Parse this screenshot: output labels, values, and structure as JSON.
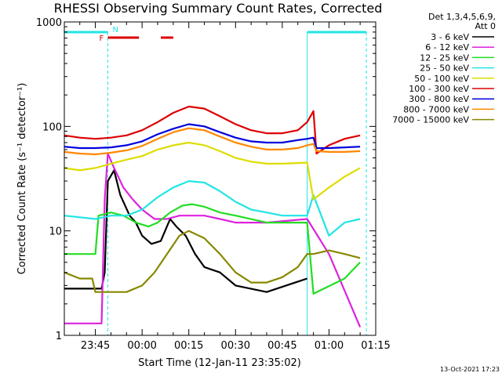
{
  "chart_data": {
    "type": "line",
    "title": "RHESSI Observing Summary Count Rates, Corrected",
    "xlabel": "Start Time (12-Jan-11 23:35:02)",
    "ylabel": "Corrected Count Rate (s⁻¹ detector⁻¹)",
    "y_scale": "log",
    "ylim": [
      1,
      1000
    ],
    "y_ticks": [
      {
        "value": 1,
        "label": "1"
      },
      {
        "value": 10,
        "label": "10"
      },
      {
        "value": 100,
        "label": "100"
      },
      {
        "value": 1000,
        "label": "1000"
      }
    ],
    "xlim": [
      "23:35:02",
      "01:15:00"
    ],
    "x_ticks": [
      "23:45",
      "00:00",
      "00:15",
      "00:30",
      "00:45",
      "01:00",
      "01:15"
    ],
    "legend": {
      "position": "right",
      "header_lines": [
        "Det 1,3,4,5,6,9,",
        "Att 0"
      ]
    },
    "series": [
      {
        "name": "3 - 6 keV",
        "color": "#000000",
        "points": [
          [
            "23:35",
            2.8
          ],
          [
            "23:47",
            2.8
          ],
          [
            "23:48",
            4
          ],
          [
            "23:49",
            30
          ],
          [
            "23:51",
            38
          ],
          [
            "23:53",
            22
          ],
          [
            "23:56",
            14
          ],
          [
            "23:58",
            12
          ],
          [
            "00:00",
            9
          ],
          [
            "00:03",
            7.5
          ],
          [
            "00:06",
            8
          ],
          [
            "00:09",
            13
          ],
          [
            "00:11",
            11
          ],
          [
            "00:14",
            9
          ],
          [
            "00:17",
            6
          ],
          [
            "00:20",
            4.5
          ],
          [
            "00:25",
            4
          ],
          [
            "00:30",
            3
          ],
          [
            "00:40",
            2.6
          ],
          [
            "00:53",
            3.5
          ]
        ]
      },
      {
        "name": "6 - 12 keV",
        "color": "#dd22dd",
        "points": [
          [
            "23:35",
            1.3
          ],
          [
            "23:47",
            1.3
          ],
          [
            "23:48",
            20
          ],
          [
            "23:49",
            55
          ],
          [
            "23:51",
            40
          ],
          [
            "23:54",
            26
          ],
          [
            "23:57",
            20
          ],
          [
            "00:00",
            16
          ],
          [
            "00:04",
            13
          ],
          [
            "00:08",
            13
          ],
          [
            "00:12",
            14
          ],
          [
            "00:15",
            14
          ],
          [
            "00:20",
            14
          ],
          [
            "00:25",
            13
          ],
          [
            "00:30",
            12
          ],
          [
            "00:40",
            12
          ],
          [
            "00:53",
            13
          ],
          [
            "01:00",
            6
          ],
          [
            "01:10",
            1.2
          ]
        ]
      },
      {
        "name": "12 - 25 keV",
        "color": "#22dd22",
        "points": [
          [
            "23:35",
            6
          ],
          [
            "23:45",
            6
          ],
          [
            "23:46",
            14
          ],
          [
            "23:50",
            15
          ],
          [
            "23:54",
            14
          ],
          [
            "23:58",
            12
          ],
          [
            "00:02",
            11
          ],
          [
            "00:05",
            12
          ],
          [
            "00:09",
            15
          ],
          [
            "00:13",
            17.5
          ],
          [
            "00:16",
            18
          ],
          [
            "00:20",
            17
          ],
          [
            "00:25",
            15
          ],
          [
            "00:30",
            14
          ],
          [
            "00:40",
            12
          ],
          [
            "00:53",
            12
          ],
          [
            "00:55",
            2.5
          ],
          [
            "01:05",
            3.5
          ],
          [
            "01:10",
            5
          ]
        ]
      },
      {
        "name": "25 - 50 keV",
        "color": "#22e5e5",
        "points": [
          [
            "23:35",
            14
          ],
          [
            "23:40",
            13.5
          ],
          [
            "23:45",
            13
          ],
          [
            "23:50",
            14
          ],
          [
            "23:55",
            14
          ],
          [
            "00:00",
            16
          ],
          [
            "00:05",
            21
          ],
          [
            "00:10",
            26
          ],
          [
            "00:15",
            30
          ],
          [
            "00:20",
            29
          ],
          [
            "00:25",
            24
          ],
          [
            "00:30",
            19
          ],
          [
            "00:35",
            16
          ],
          [
            "00:40",
            15
          ],
          [
            "00:45",
            14
          ],
          [
            "00:53",
            14
          ],
          [
            "00:55",
            22
          ],
          [
            "01:00",
            9
          ],
          [
            "01:05",
            12
          ],
          [
            "01:10",
            13
          ]
        ]
      },
      {
        "name": "50 - 100 keV",
        "color": "#dddd00",
        "points": [
          [
            "23:35",
            40
          ],
          [
            "23:40",
            38
          ],
          [
            "23:45",
            40
          ],
          [
            "23:50",
            44
          ],
          [
            "23:55",
            48
          ],
          [
            "00:00",
            52
          ],
          [
            "00:05",
            60
          ],
          [
            "00:10",
            66
          ],
          [
            "00:15",
            70
          ],
          [
            "00:20",
            66
          ],
          [
            "00:25",
            58
          ],
          [
            "00:30",
            50
          ],
          [
            "00:35",
            46
          ],
          [
            "00:40",
            44
          ],
          [
            "00:45",
            44
          ],
          [
            "00:53",
            45
          ],
          [
            "00:55",
            20
          ],
          [
            "01:00",
            26
          ],
          [
            "01:05",
            33
          ],
          [
            "01:10",
            40
          ]
        ]
      },
      {
        "name": "100 - 300 keV",
        "color": "#dd0000",
        "points": [
          [
            "23:35",
            82
          ],
          [
            "23:40",
            78
          ],
          [
            "23:45",
            76
          ],
          [
            "23:50",
            78
          ],
          [
            "23:55",
            82
          ],
          [
            "00:00",
            92
          ],
          [
            "00:05",
            110
          ],
          [
            "00:10",
            135
          ],
          [
            "00:15",
            155
          ],
          [
            "00:20",
            148
          ],
          [
            "00:25",
            125
          ],
          [
            "00:30",
            105
          ],
          [
            "00:35",
            92
          ],
          [
            "00:40",
            86
          ],
          [
            "00:45",
            86
          ],
          [
            "00:50",
            92
          ],
          [
            "00:53",
            110
          ],
          [
            "00:55",
            140
          ],
          [
            "00:56",
            55
          ],
          [
            "01:00",
            66
          ],
          [
            "01:05",
            76
          ],
          [
            "01:10",
            82
          ]
        ]
      },
      {
        "name": "300 - 800 keV",
        "color": "#0000dd",
        "points": [
          [
            "23:35",
            64
          ],
          [
            "23:40",
            62
          ],
          [
            "23:45",
            62
          ],
          [
            "23:50",
            63
          ],
          [
            "23:55",
            66
          ],
          [
            "00:00",
            72
          ],
          [
            "00:05",
            84
          ],
          [
            "00:10",
            95
          ],
          [
            "00:15",
            105
          ],
          [
            "00:20",
            100
          ],
          [
            "00:25",
            88
          ],
          [
            "00:30",
            78
          ],
          [
            "00:35",
            72
          ],
          [
            "00:40",
            70
          ],
          [
            "00:45",
            70
          ],
          [
            "00:50",
            74
          ],
          [
            "00:53",
            76
          ],
          [
            "00:55",
            78
          ],
          [
            "00:56",
            62
          ],
          [
            "01:00",
            62
          ],
          [
            "01:05",
            63
          ],
          [
            "01:10",
            64
          ]
        ]
      },
      {
        "name": "800 - 7000 keV",
        "color": "#ff8800",
        "points": [
          [
            "23:35",
            57
          ],
          [
            "23:40",
            55
          ],
          [
            "23:45",
            54
          ],
          [
            "23:50",
            56
          ],
          [
            "23:55",
            59
          ],
          [
            "00:00",
            65
          ],
          [
            "00:05",
            76
          ],
          [
            "00:10",
            88
          ],
          [
            "00:15",
            96
          ],
          [
            "00:20",
            92
          ],
          [
            "00:25",
            80
          ],
          [
            "00:30",
            70
          ],
          [
            "00:35",
            64
          ],
          [
            "00:40",
            60
          ],
          [
            "00:45",
            60
          ],
          [
            "00:50",
            62
          ],
          [
            "00:53",
            66
          ],
          [
            "00:55",
            68
          ],
          [
            "00:56",
            58
          ],
          [
            "01:00",
            57
          ],
          [
            "01:05",
            57
          ],
          [
            "01:10",
            58
          ]
        ]
      },
      {
        "name": "7000 - 15000 keV",
        "color": "#888800",
        "points": [
          [
            "23:35",
            4
          ],
          [
            "23:40",
            3.5
          ],
          [
            "23:44",
            3.5
          ],
          [
            "23:45",
            2.6
          ],
          [
            "23:52",
            2.6
          ],
          [
            "23:55",
            2.6
          ],
          [
            "00:00",
            3
          ],
          [
            "00:04",
            4
          ],
          [
            "00:08",
            6
          ],
          [
            "00:12",
            9
          ],
          [
            "00:15",
            10
          ],
          [
            "00:20",
            8.5
          ],
          [
            "00:25",
            6
          ],
          [
            "00:30",
            4
          ],
          [
            "00:35",
            3.2
          ],
          [
            "00:40",
            3.2
          ],
          [
            "00:45",
            3.6
          ],
          [
            "00:50",
            4.5
          ],
          [
            "00:53",
            6
          ],
          [
            "00:55",
            6
          ],
          [
            "01:00",
            6.5
          ],
          [
            "01:05",
            6
          ],
          [
            "01:10",
            5.5
          ]
        ]
      }
    ],
    "annotations": [
      {
        "text": "N",
        "color": "#22e5e5",
        "x": "23:49"
      },
      {
        "text": "F",
        "color": "#dd0000",
        "x": "23:48"
      }
    ],
    "intervals": {
      "night": [
        [
          "23:35",
          "23:49"
        ],
        [
          "00:53",
          "01:12"
        ]
      ],
      "saa_lines": [
        "23:49",
        "00:53",
        "01:12"
      ],
      "flare": [
        [
          "23:49",
          "23:59"
        ],
        [
          "00:06",
          "00:10"
        ]
      ]
    },
    "footer": "13-Oct-2021 17:23"
  }
}
